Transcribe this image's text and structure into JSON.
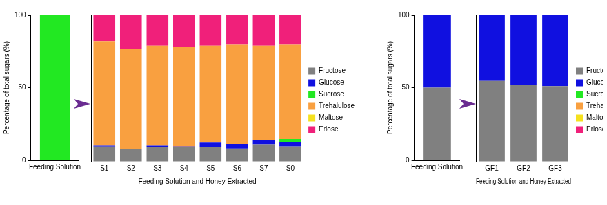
{
  "chart_data": [
    {
      "type": "bar",
      "stacked": true,
      "grid": false,
      "tick_labels": true,
      "y_label": "Percentage of total sugars (%)",
      "ylim": [
        0,
        100
      ],
      "yticks": [
        0,
        50,
        100
      ],
      "categories": [
        "Feeding Solution"
      ],
      "series": [
        {
          "name": "Sucrose",
          "color": "#22e822",
          "values": [
            100
          ]
        }
      ]
    },
    {
      "type": "bar",
      "stacked": true,
      "grid": false,
      "tick_labels": "x",
      "legend": "right",
      "x_label": "Feeding Solution and Honey Extracted",
      "ylim": [
        0,
        100
      ],
      "categories": [
        "S1",
        "S2",
        "S3",
        "S4",
        "S5",
        "S6",
        "S7",
        "S0"
      ],
      "series": [
        {
          "name": "Fructose",
          "color": "#808080",
          "values": [
            10.5,
            8.5,
            10,
            10,
            10,
            9,
            11.5,
            10.5
          ]
        },
        {
          "name": "Glucose",
          "color": "#1010e0",
          "values": [
            0.5,
            0,
            1,
            0.5,
            3,
            3,
            3,
            3
          ]
        },
        {
          "name": "Sucrose",
          "color": "#22e822",
          "values": [
            0,
            0,
            0,
            0,
            0,
            0,
            0,
            2
          ]
        },
        {
          "name": "Trehalulose",
          "color": "#f9a040",
          "values": [
            71,
            68.5,
            68,
            67.5,
            66,
            68,
            64.5,
            64.5
          ]
        },
        {
          "name": "Maltose",
          "color": "#f5e11e",
          "values": [
            0,
            0,
            0,
            0,
            0,
            0,
            0,
            0
          ]
        },
        {
          "name": "Erlose",
          "color": "#f0207a",
          "values": [
            18,
            23,
            21,
            22,
            21,
            20,
            21,
            20
          ]
        }
      ]
    },
    {
      "type": "bar",
      "stacked": true,
      "grid": false,
      "tick_labels": true,
      "y_label": "Percentage of total sugars (%)",
      "ylim": [
        0,
        100
      ],
      "yticks": [
        0,
        50,
        100
      ],
      "categories": [
        "Feeding Solution"
      ],
      "series": [
        {
          "name": "Fructose",
          "color": "#808080",
          "values": [
            50
          ]
        },
        {
          "name": "Glucose",
          "color": "#1010e0",
          "values": [
            50
          ]
        }
      ]
    },
    {
      "type": "bar",
      "stacked": true,
      "grid": false,
      "tick_labels": "x",
      "legend": "right",
      "x_label": "Feeding Solution and Honey Extracted",
      "ylim": [
        0,
        100
      ],
      "categories": [
        "GF1",
        "GF2",
        "GF3"
      ],
      "series": [
        {
          "name": "Fructose",
          "color": "#808080",
          "values": [
            55,
            52.5,
            51.5
          ]
        },
        {
          "name": "Glucose",
          "color": "#1010e0",
          "values": [
            45,
            47.5,
            48.5
          ]
        },
        {
          "name": "Sucrose",
          "color": "#22e822",
          "values": [
            0,
            0,
            0
          ]
        },
        {
          "name": "Trehalulose",
          "color": "#f9a040",
          "values": [
            0,
            0,
            0
          ]
        },
        {
          "name": "Maltose",
          "color": "#f5e11e",
          "values": [
            0,
            0,
            0
          ]
        },
        {
          "name": "Erlose",
          "color": "#f0207a",
          "values": [
            0,
            0,
            0
          ]
        }
      ]
    }
  ]
}
